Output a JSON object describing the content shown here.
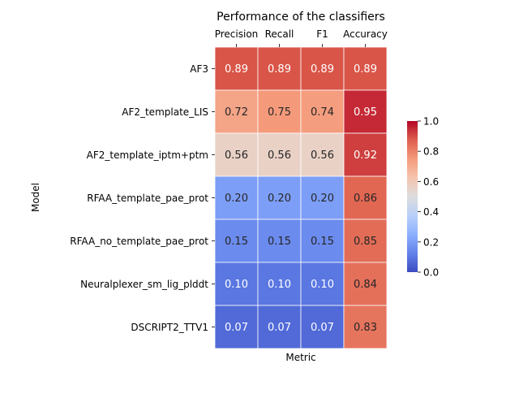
{
  "chart_data": {
    "type": "heatmap",
    "title": "Performance of the classifiers",
    "xlabel": "Metric",
    "ylabel": "Model",
    "columns": [
      "Precision",
      "Recall",
      "F1",
      "Accuracy"
    ],
    "rows": [
      "AF3",
      "AF2_template_LIS",
      "AF2_template_iptm+ptm",
      "RFAA_template_pae_prot",
      "RFAA_no_template_pae_prot",
      "Neuralplexer_sm_lig_plddt",
      "DSCRIPT2_TTV1"
    ],
    "values": [
      [
        0.89,
        0.89,
        0.89,
        0.89
      ],
      [
        0.72,
        0.75,
        0.74,
        0.95
      ],
      [
        0.56,
        0.56,
        0.56,
        0.92
      ],
      [
        0.2,
        0.2,
        0.2,
        0.86
      ],
      [
        0.15,
        0.15,
        0.15,
        0.85
      ],
      [
        0.1,
        0.1,
        0.1,
        0.84
      ],
      [
        0.07,
        0.07,
        0.07,
        0.83
      ]
    ],
    "colormap": "coolwarm",
    "vmin": 0.0,
    "vmax": 1.0,
    "colorbar_ticks": [
      "0.0",
      "0.2",
      "0.4",
      "0.6",
      "0.8",
      "1.0"
    ],
    "x_tick_position": "top",
    "grid": false
  }
}
